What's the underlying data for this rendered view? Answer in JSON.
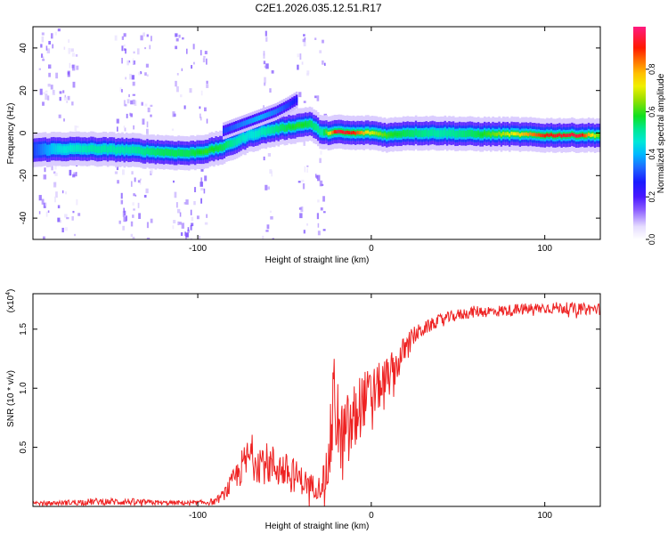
{
  "page": {
    "title": "C2E1.2026.035.12.51.R17"
  },
  "colors": {
    "snr_line": "#ee2222",
    "axis": "#000000",
    "background": "#ffffff"
  },
  "chart_data": [
    {
      "type": "heatmap",
      "title": "C2E1.2026.035.12.51.R17",
      "xlabel": "Height of straight line (km)",
      "ylabel": "Frequency (Hz)",
      "xlim": [
        -195,
        132
      ],
      "ylim": [
        -50,
        50
      ],
      "x_ticks": [
        -100,
        0,
        100
      ],
      "x_tick_labels": [
        "-100",
        "0",
        "100"
      ],
      "y_ticks": [
        -40,
        -20,
        0,
        20,
        40
      ],
      "y_tick_labels": [
        "-40",
        "-20",
        "0",
        "20",
        "40"
      ],
      "colorbar": {
        "label": "Normalized spectral amplitude",
        "range": [
          0.0,
          1.0
        ],
        "ticks": [
          0.0,
          0.2,
          0.4,
          0.6,
          0.8
        ],
        "tick_labels": [
          "0.0",
          "0.2",
          "0.4",
          "0.6",
          "0.8"
        ]
      },
      "main_ridge": {
        "x": [
          -195,
          -180,
          -160,
          -140,
          -120,
          -105,
          -95,
          -85,
          -78,
          -70,
          -60,
          -50,
          -42,
          -35,
          -28,
          -20,
          -10,
          0,
          10,
          20,
          40,
          60,
          80,
          100,
          120,
          132
        ],
        "y": [
          -8,
          -7.5,
          -7.5,
          -8,
          -9,
          -9.5,
          -8.5,
          -6.5,
          -4,
          -1,
          1,
          2.5,
          3.5,
          4.5,
          0,
          0.5,
          0,
          0.2,
          -1,
          0,
          0,
          -0.5,
          -0.5,
          -1,
          -1,
          -1
        ],
        "amplitude": [
          0.3,
          0.45,
          0.5,
          0.5,
          0.55,
          0.55,
          0.6,
          0.55,
          0.5,
          0.45,
          0.5,
          0.55,
          0.6,
          0.55,
          0.5,
          0.95,
          0.9,
          0.7,
          0.6,
          0.55,
          0.5,
          0.55,
          0.7,
          0.9,
          0.95,
          0.6
        ]
      },
      "secondary_branch": {
        "x": [
          -85,
          -75,
          -65,
          -55,
          -48,
          -42
        ],
        "y": [
          1,
          4,
          7,
          10,
          13,
          16
        ],
        "amplitude": [
          0.3,
          0.35,
          0.4,
          0.35,
          0.3,
          0.25
        ]
      }
    },
    {
      "type": "line",
      "title": "",
      "xlabel": "Height of straight line (km)",
      "ylabel": "SNR (10 * v/v)",
      "multiplier": "(x10",
      "multiplier_exp": "4",
      "multiplier_close": ")",
      "xlim": [
        -195,
        132
      ],
      "ylim": [
        0,
        1.8
      ],
      "x_ticks": [
        -100,
        0,
        100
      ],
      "x_tick_labels": [
        "-100",
        "0",
        "100"
      ],
      "y_ticks": [
        0.5,
        1.0,
        1.5
      ],
      "y_tick_labels": [
        "0.5",
        "1.0",
        "1.5"
      ],
      "series": [
        {
          "name": "SNR",
          "x": [
            -195,
            -180,
            -160,
            -140,
            -120,
            -100,
            -90,
            -85,
            -80,
            -75,
            -70,
            -65,
            -60,
            -55,
            -50,
            -45,
            -40,
            -35,
            -30,
            -25,
            -22,
            -20,
            -18,
            -15,
            -12,
            -10,
            -8,
            -5,
            0,
            5,
            10,
            15,
            20,
            25,
            30,
            40,
            50,
            60,
            70,
            80,
            90,
            100,
            110,
            120,
            132
          ],
          "mean": [
            0.02,
            0.03,
            0.04,
            0.04,
            0.03,
            0.03,
            0.04,
            0.1,
            0.2,
            0.32,
            0.42,
            0.4,
            0.36,
            0.34,
            0.3,
            0.27,
            0.22,
            0.18,
            0.16,
            0.3,
            0.8,
            0.9,
            0.5,
            0.6,
            0.65,
            0.7,
            0.8,
            0.9,
            0.95,
            1.02,
            1.1,
            1.2,
            1.35,
            1.45,
            1.5,
            1.58,
            1.62,
            1.65,
            1.65,
            1.66,
            1.67,
            1.68,
            1.68,
            1.67,
            1.67
          ],
          "noise": [
            0.02,
            0.02,
            0.03,
            0.03,
            0.02,
            0.02,
            0.03,
            0.05,
            0.1,
            0.15,
            0.2,
            0.2,
            0.18,
            0.18,
            0.16,
            0.15,
            0.12,
            0.1,
            0.1,
            0.2,
            0.45,
            0.5,
            0.35,
            0.35,
            0.35,
            0.35,
            0.3,
            0.25,
            0.22,
            0.2,
            0.18,
            0.15,
            0.12,
            0.08,
            0.06,
            0.05,
            0.05,
            0.05,
            0.05,
            0.05,
            0.05,
            0.05,
            0.05,
            0.05,
            0.05
          ],
          "color": "#ee2222"
        }
      ]
    }
  ]
}
